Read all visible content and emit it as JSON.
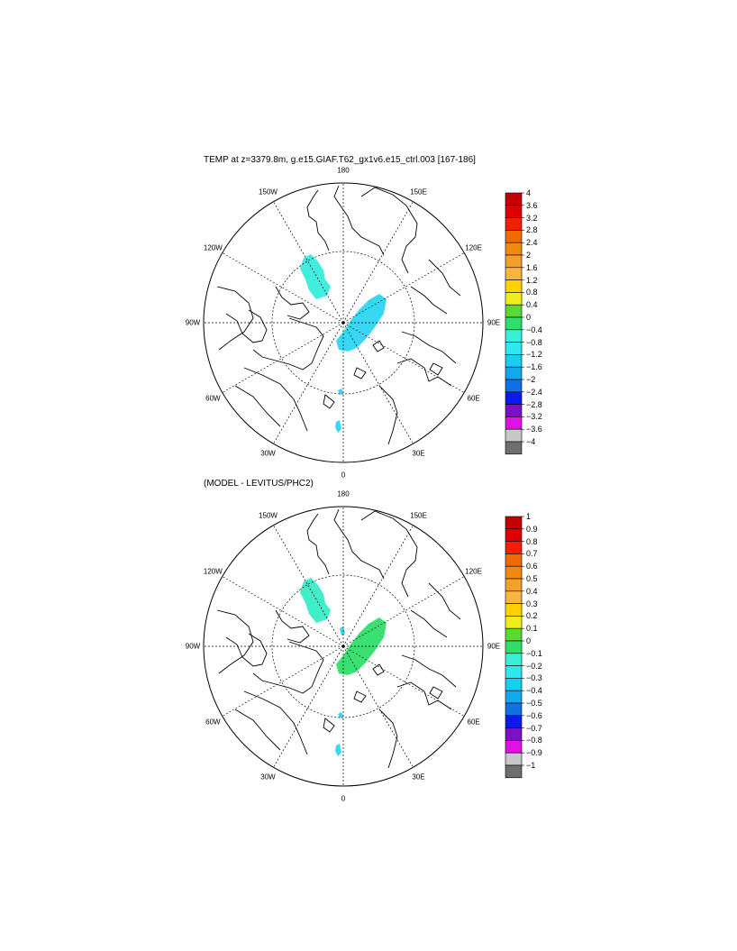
{
  "panel1": {
    "title": "TEMP at z=3379.8m, g.e15.GIAF.T62_gx1v6.e15_ctrl.003 [167-186]",
    "lon_labels": [
      "180",
      "150E",
      "120E",
      "90E",
      "60E",
      "30E",
      "0",
      "30W",
      "60W",
      "90W",
      "120W",
      "150W"
    ],
    "colorbar": {
      "labels": [
        "4",
        "3.6",
        "3.2",
        "2.8",
        "2.4",
        "2",
        "1.6",
        "1.2",
        "0.8",
        "0.4",
        "0",
        "−0.4",
        "−0.8",
        "−1.2",
        "−1.6",
        "−2",
        "−2.4",
        "−2.8",
        "−3.2",
        "−3.6",
        "−4"
      ],
      "colors": [
        "#c40000",
        "#e00000",
        "#f51f00",
        "#f06a00",
        "#f38a10",
        "#f5a02a",
        "#f8b640",
        "#ffd200",
        "#f0ef1a",
        "#5cd832",
        "#2ce06a",
        "#38f0d8",
        "#2ee8ee",
        "#18cff2",
        "#12a8f0",
        "#1170e6",
        "#0a1aee",
        "#7a10c8",
        "#e010e6",
        "#c8c8c8"
      ],
      "end_color": "#6e6e6e"
    }
  },
  "panel2": {
    "title": "(MODEL - LEVITUS/PHC2)",
    "lon_labels": [
      "180",
      "150E",
      "120E",
      "90E",
      "60E",
      "30E",
      "0",
      "30W",
      "60W",
      "90W",
      "120W",
      "150W"
    ],
    "colorbar": {
      "labels": [
        "1",
        "0.9",
        "0.8",
        "0.7",
        "0.6",
        "0.5",
        "0.4",
        "0.3",
        "0.2",
        "0.1",
        "0",
        "−0.1",
        "−0.2",
        "−0.3",
        "−0.4",
        "−0.5",
        "−0.6",
        "−0.7",
        "−0.8",
        "−0.9",
        "−1"
      ],
      "colors": [
        "#c40000",
        "#e00000",
        "#f51f00",
        "#f06a00",
        "#f38a10",
        "#f5a02a",
        "#f8b640",
        "#ffd200",
        "#f0ef1a",
        "#5cd832",
        "#2ce06a",
        "#38f0d8",
        "#2ee8ee",
        "#18cff2",
        "#12a8f0",
        "#1170e6",
        "#0a1aee",
        "#7a10c8",
        "#e010e6",
        "#c8c8c8"
      ],
      "end_color": "#6e6e6e"
    }
  }
}
